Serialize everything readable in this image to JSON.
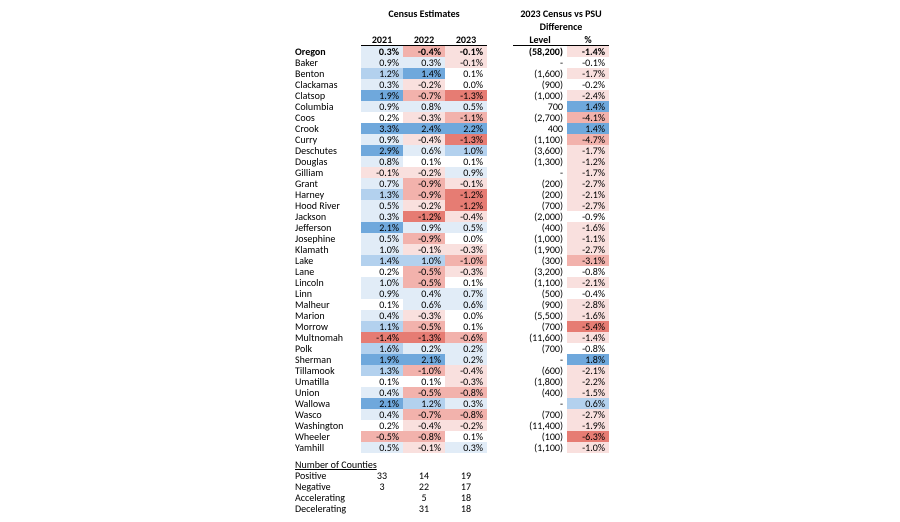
{
  "headers": {
    "census_group": "Census Estimates",
    "diff_group_l1": "2023 Census vs PSU",
    "diff_group_l2": "Difference",
    "y2021": "2021",
    "y2022": "2022",
    "y2023": "2023",
    "level": "Level",
    "pct": "%"
  },
  "color_scale": {
    "neg_strong": "#e67c73",
    "neg_mid": "#f2b2ac",
    "neg_weak": "#f9e0de",
    "neutral": "#ffffff",
    "pos_weak": "#e1ecf7",
    "pos_mid": "#b3d1ee",
    "pos_strong": "#6fa8dc"
  },
  "rows": [
    {
      "name": "Oregon",
      "bold": true,
      "y21": "0.3%",
      "c21": "pos_weak",
      "y22": "-0.4%",
      "c22": "neg_mid",
      "y23": "-0.1%",
      "c23": "neg_weak",
      "lvl": "(58,200)",
      "pct": "-1.4%",
      "cp": "neg_weak"
    },
    {
      "name": "Baker",
      "y21": "0.9%",
      "c21": "pos_weak",
      "y22": "0.3%",
      "c22": "pos_weak",
      "y23": "-0.1%",
      "c23": "neg_weak",
      "lvl": "-",
      "pct": "-0.1%",
      "cp": "neutral"
    },
    {
      "name": "Benton",
      "y21": "1.2%",
      "c21": "pos_mid",
      "y22": "1.4%",
      "c22": "pos_strong",
      "y23": "0.1%",
      "c23": "neutral",
      "lvl": "(1,600)",
      "pct": "-1.7%",
      "cp": "neg_weak"
    },
    {
      "name": "Clackamas",
      "y21": "0.3%",
      "c21": "pos_weak",
      "y22": "-0.2%",
      "c22": "neg_weak",
      "y23": "0.0%",
      "c23": "neutral",
      "lvl": "(900)",
      "pct": "-0.2%",
      "cp": "neutral"
    },
    {
      "name": "Clatsop",
      "y21": "1.9%",
      "c21": "pos_strong",
      "y22": "-0.7%",
      "c22": "neg_mid",
      "y23": "-1.3%",
      "c23": "neg_strong",
      "lvl": "(1,000)",
      "pct": "-2.4%",
      "cp": "neg_weak"
    },
    {
      "name": "Columbia",
      "y21": "0.9%",
      "c21": "pos_weak",
      "y22": "0.8%",
      "c22": "pos_weak",
      "y23": "0.5%",
      "c23": "pos_weak",
      "lvl": "700",
      "pct": "1.4%",
      "cp": "pos_strong"
    },
    {
      "name": "Coos",
      "y21": "0.2%",
      "c21": "neutral",
      "y22": "-0.3%",
      "c22": "neg_weak",
      "y23": "-1.1%",
      "c23": "neg_mid",
      "lvl": "(2,700)",
      "pct": "-4.1%",
      "cp": "neg_mid"
    },
    {
      "name": "Crook",
      "y21": "3.3%",
      "c21": "pos_strong",
      "y22": "2.4%",
      "c22": "pos_strong",
      "y23": "2.2%",
      "c23": "pos_strong",
      "lvl": "400",
      "pct": "1.4%",
      "cp": "pos_strong"
    },
    {
      "name": "Curry",
      "y21": "0.9%",
      "c21": "pos_weak",
      "y22": "-0.4%",
      "c22": "neg_weak",
      "y23": "-1.3%",
      "c23": "neg_strong",
      "lvl": "(1,100)",
      "pct": "-4.7%",
      "cp": "neg_mid"
    },
    {
      "name": "Deschutes",
      "y21": "2.9%",
      "c21": "pos_strong",
      "y22": "0.6%",
      "c22": "pos_weak",
      "y23": "1.0%",
      "c23": "pos_mid",
      "lvl": "(3,600)",
      "pct": "-1.7%",
      "cp": "neg_weak"
    },
    {
      "name": "Douglas",
      "y21": "0.8%",
      "c21": "pos_weak",
      "y22": "0.1%",
      "c22": "neutral",
      "y23": "0.1%",
      "c23": "neutral",
      "lvl": "(1,300)",
      "pct": "-1.2%",
      "cp": "neg_weak"
    },
    {
      "name": "Gilliam",
      "y21": "-0.1%",
      "c21": "neg_weak",
      "y22": "-0.2%",
      "c22": "neg_weak",
      "y23": "0.9%",
      "c23": "pos_weak",
      "lvl": "-",
      "pct": "-1.7%",
      "cp": "neg_weak"
    },
    {
      "name": "Grant",
      "y21": "0.7%",
      "c21": "pos_weak",
      "y22": "-0.9%",
      "c22": "neg_mid",
      "y23": "-0.1%",
      "c23": "neg_weak",
      "lvl": "(200)",
      "pct": "-2.7%",
      "cp": "neg_weak"
    },
    {
      "name": "Harney",
      "y21": "1.3%",
      "c21": "pos_mid",
      "y22": "-0.9%",
      "c22": "neg_mid",
      "y23": "-1.2%",
      "c23": "neg_strong",
      "lvl": "(200)",
      "pct": "-2.1%",
      "cp": "neg_weak"
    },
    {
      "name": "Hood River",
      "y21": "0.5%",
      "c21": "pos_weak",
      "y22": "-0.2%",
      "c22": "neg_weak",
      "y23": "-1.2%",
      "c23": "neg_strong",
      "lvl": "(700)",
      "pct": "-2.7%",
      "cp": "neg_weak"
    },
    {
      "name": "Jackson",
      "y21": "0.3%",
      "c21": "pos_weak",
      "y22": "-1.2%",
      "c22": "neg_strong",
      "y23": "-0.4%",
      "c23": "neg_weak",
      "lvl": "(2,000)",
      "pct": "-0.9%",
      "cp": "neutral"
    },
    {
      "name": "Jefferson",
      "y21": "2.1%",
      "c21": "pos_strong",
      "y22": "0.9%",
      "c22": "pos_weak",
      "y23": "0.5%",
      "c23": "pos_weak",
      "lvl": "(400)",
      "pct": "-1.6%",
      "cp": "neg_weak"
    },
    {
      "name": "Josephine",
      "y21": "0.5%",
      "c21": "pos_weak",
      "y22": "-0.9%",
      "c22": "neg_mid",
      "y23": "0.0%",
      "c23": "neutral",
      "lvl": "(1,000)",
      "pct": "-1.1%",
      "cp": "neg_weak"
    },
    {
      "name": "Klamath",
      "y21": "1.0%",
      "c21": "pos_weak",
      "y22": "-0.1%",
      "c22": "neg_weak",
      "y23": "-0.3%",
      "c23": "neg_weak",
      "lvl": "(1,900)",
      "pct": "-2.7%",
      "cp": "neg_weak"
    },
    {
      "name": "Lake",
      "y21": "1.4%",
      "c21": "pos_mid",
      "y22": "1.0%",
      "c22": "pos_mid",
      "y23": "-1.0%",
      "c23": "neg_mid",
      "lvl": "(300)",
      "pct": "-3.1%",
      "cp": "neg_mid"
    },
    {
      "name": "Lane",
      "y21": "0.2%",
      "c21": "neutral",
      "y22": "-0.5%",
      "c22": "neg_mid",
      "y23": "-0.3%",
      "c23": "neg_weak",
      "lvl": "(3,200)",
      "pct": "-0.8%",
      "cp": "neutral"
    },
    {
      "name": "Lincoln",
      "y21": "1.0%",
      "c21": "pos_weak",
      "y22": "-0.5%",
      "c22": "neg_mid",
      "y23": "0.1%",
      "c23": "neutral",
      "lvl": "(1,100)",
      "pct": "-2.1%",
      "cp": "neg_weak"
    },
    {
      "name": "Linn",
      "y21": "0.9%",
      "c21": "pos_weak",
      "y22": "0.4%",
      "c22": "pos_weak",
      "y23": "0.7%",
      "c23": "pos_weak",
      "lvl": "(500)",
      "pct": "-0.4%",
      "cp": "neutral"
    },
    {
      "name": "Malheur",
      "y21": "0.1%",
      "c21": "neutral",
      "y22": "0.6%",
      "c22": "pos_weak",
      "y23": "0.6%",
      "c23": "pos_weak",
      "lvl": "(900)",
      "pct": "-2.8%",
      "cp": "neg_weak"
    },
    {
      "name": "Marion",
      "y21": "0.4%",
      "c21": "pos_weak",
      "y22": "-0.3%",
      "c22": "neg_weak",
      "y23": "0.0%",
      "c23": "neutral",
      "lvl": "(5,500)",
      "pct": "-1.6%",
      "cp": "neg_weak"
    },
    {
      "name": "Morrow",
      "y21": "1.1%",
      "c21": "pos_mid",
      "y22": "-0.5%",
      "c22": "neg_mid",
      "y23": "0.1%",
      "c23": "neutral",
      "lvl": "(700)",
      "pct": "-5.4%",
      "cp": "neg_strong"
    },
    {
      "name": "Multnomah",
      "y21": "-1.4%",
      "c21": "neg_strong",
      "y22": "-1.3%",
      "c22": "neg_strong",
      "y23": "-0.6%",
      "c23": "neg_mid",
      "lvl": "(11,600)",
      "pct": "-1.4%",
      "cp": "neg_weak"
    },
    {
      "name": "Polk",
      "y21": "1.6%",
      "c21": "pos_mid",
      "y22": "0.2%",
      "c22": "pos_weak",
      "y23": "0.2%",
      "c23": "pos_weak",
      "lvl": "(700)",
      "pct": "-0.8%",
      "cp": "neutral"
    },
    {
      "name": "Sherman",
      "y21": "1.9%",
      "c21": "pos_strong",
      "y22": "2.1%",
      "c22": "pos_strong",
      "y23": "0.2%",
      "c23": "pos_weak",
      "lvl": "-",
      "pct": "1.8%",
      "cp": "pos_strong"
    },
    {
      "name": "Tillamook",
      "y21": "1.3%",
      "c21": "pos_mid",
      "y22": "-1.0%",
      "c22": "neg_mid",
      "y23": "-0.4%",
      "c23": "neg_weak",
      "lvl": "(600)",
      "pct": "-2.1%",
      "cp": "neg_weak"
    },
    {
      "name": "Umatilla",
      "y21": "0.1%",
      "c21": "neutral",
      "y22": "0.1%",
      "c22": "neutral",
      "y23": "-0.3%",
      "c23": "neg_weak",
      "lvl": "(1,800)",
      "pct": "-2.2%",
      "cp": "neg_weak"
    },
    {
      "name": "Union",
      "y21": "0.4%",
      "c21": "pos_weak",
      "y22": "-0.5%",
      "c22": "neg_mid",
      "y23": "-0.8%",
      "c23": "neg_mid",
      "lvl": "(400)",
      "pct": "-1.5%",
      "cp": "neg_weak"
    },
    {
      "name": "Wallowa",
      "y21": "2.1%",
      "c21": "pos_strong",
      "y22": "1.2%",
      "c22": "pos_mid",
      "y23": "0.3%",
      "c23": "pos_weak",
      "lvl": "-",
      "pct": "0.6%",
      "cp": "pos_mid"
    },
    {
      "name": "Wasco",
      "y21": "0.4%",
      "c21": "pos_weak",
      "y22": "-0.7%",
      "c22": "neg_mid",
      "y23": "-0.8%",
      "c23": "neg_mid",
      "lvl": "(700)",
      "pct": "-2.7%",
      "cp": "neg_weak"
    },
    {
      "name": "Washington",
      "y21": "0.2%",
      "c21": "neutral",
      "y22": "-0.4%",
      "c22": "neg_weak",
      "y23": "-0.2%",
      "c23": "neg_weak",
      "lvl": "(11,400)",
      "pct": "-1.9%",
      "cp": "neg_weak"
    },
    {
      "name": "Wheeler",
      "y21": "-0.5%",
      "c21": "neg_mid",
      "y22": "-0.8%",
      "c22": "neg_mid",
      "y23": "0.1%",
      "c23": "neutral",
      "lvl": "(100)",
      "pct": "-6.3%",
      "cp": "neg_strong"
    },
    {
      "name": "Yamhill",
      "y21": "0.5%",
      "c21": "pos_weak",
      "y22": "-0.1%",
      "c22": "neg_weak",
      "y23": "0.3%",
      "c23": "pos_weak",
      "lvl": "(1,100)",
      "pct": "-1.0%",
      "cp": "neg_weak"
    }
  ],
  "summary": {
    "header": "Number of Counties",
    "rows": [
      {
        "label": "Positive",
        "v21": "33",
        "v22": "14",
        "v23": "19"
      },
      {
        "label": "Negative",
        "v21": "3",
        "v22": "22",
        "v23": "17"
      },
      {
        "label": "Accelerating",
        "v21": "",
        "v22": "5",
        "v23": "18"
      },
      {
        "label": "Decelerating",
        "v21": "",
        "v22": "31",
        "v23": "18"
      }
    ]
  }
}
